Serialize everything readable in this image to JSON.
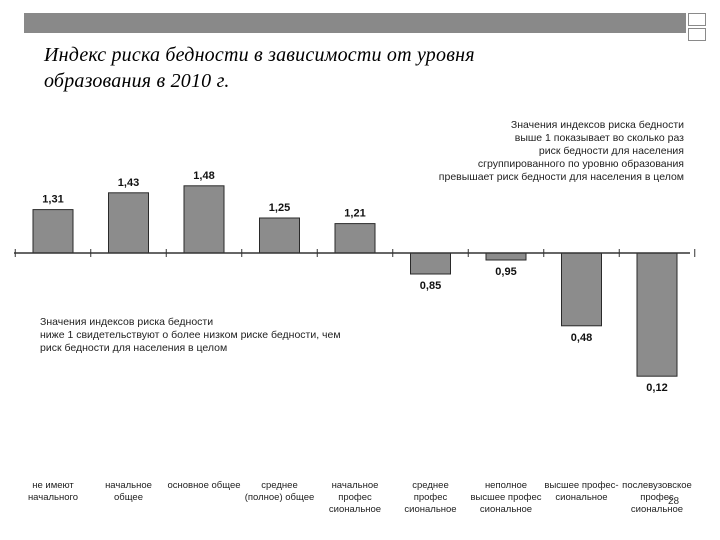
{
  "slide": {
    "title_line1": "Индекс риска бедности в зависимости от уровня",
    "title_line2": "образования в 2010 г.",
    "page_number": "28",
    "accent_color": "#898989",
    "bar_color": "#8c8c8c"
  },
  "chart_data": {
    "type": "bar",
    "title": "",
    "baseline": 1,
    "ylim": [
      0.1,
      1.5
    ],
    "categories": [
      [
        "не имеют",
        "начального"
      ],
      [
        "начальное",
        "общее"
      ],
      [
        "основное общее"
      ],
      [
        "среднее",
        "(полное) общее"
      ],
      [
        "начальное",
        "профес",
        "сиональное"
      ],
      [
        "среднее",
        "профес",
        "сиональное"
      ],
      [
        "неполное",
        "высшее профес",
        "сиональное"
      ],
      [
        "высшее профес-",
        "сиональное"
      ],
      [
        "послевузовское",
        "профес",
        "сиональное"
      ]
    ],
    "values": [
      1.31,
      1.43,
      1.48,
      1.25,
      1.21,
      0.85,
      0.95,
      0.48,
      0.12
    ],
    "value_labels": [
      "1,31",
      "1,43",
      "1,48",
      "1,25",
      "1,21",
      "0,85",
      "0,95",
      "0,48",
      "0,12"
    ],
    "annotations": {
      "above": "Значения индексов риска бедности\nвыше 1 показывает во сколько раз\nриск бедности для населения\nсгруппированного по уровню образования\nпревышает риск бедности для населения в целом",
      "below": "Значения индексов риска бедности\nниже 1 свидетельствуют о более низком риске бедности, чем\nриск бедности для населения в целом"
    }
  }
}
